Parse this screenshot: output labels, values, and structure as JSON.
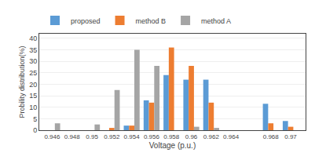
{
  "chart_data": {
    "type": "bar",
    "x": [
      0.946,
      0.948,
      0.95,
      0.952,
      0.954,
      0.956,
      0.958,
      0.96,
      0.962,
      0.964,
      0.968,
      0.97
    ],
    "series": [
      {
        "name": "proposed",
        "color": "#5B9BD5",
        "values": [
          0,
          0,
          0,
          0,
          2,
          13,
          24,
          22,
          22,
          0,
          11.5,
          4
        ]
      },
      {
        "name": "method B",
        "color": "#ED7D31",
        "values": [
          0,
          0,
          0,
          1,
          2,
          12,
          36,
          28,
          12,
          0,
          3,
          1.5
        ]
      },
      {
        "name": "method A",
        "color": "#A5A5A5",
        "values": [
          3,
          0,
          2.5,
          17.5,
          35,
          28,
          0,
          1.5,
          1,
          0,
          0,
          0
        ]
      }
    ],
    "x_label": "Voltage (p.u.)",
    "y_label": "Probility distribution(%)",
    "xlim": [
      0.9447,
      0.9715
    ],
    "xticks": [
      0.946,
      0.948,
      0.95,
      0.952,
      0.954,
      0.956,
      0.958,
      0.96,
      0.962,
      0.964,
      0.968,
      0.97
    ],
    "ylim": [
      0,
      42
    ],
    "yticks": [
      0,
      5,
      10,
      15,
      20,
      25,
      30,
      35,
      40
    ],
    "grid": true,
    "legend": "upper left"
  }
}
